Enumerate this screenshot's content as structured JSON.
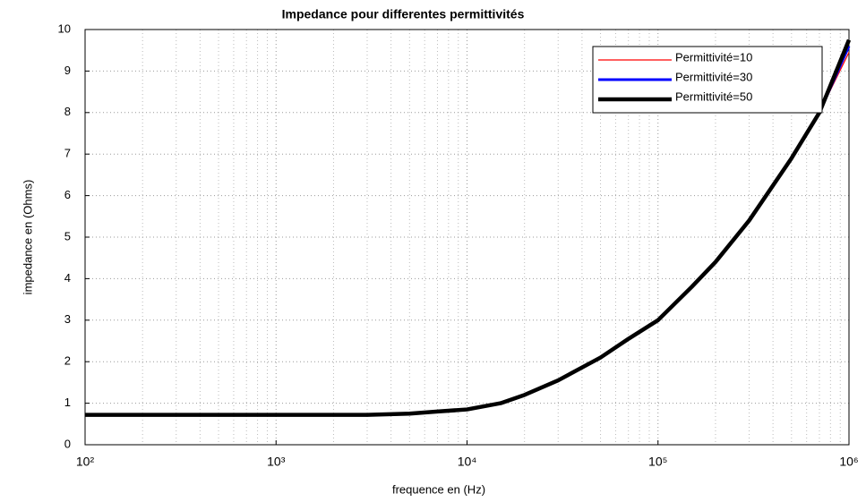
{
  "chart_data": {
    "type": "line",
    "title": "Impedance pour differentes permittivités",
    "xlabel": "frequence en (Hz)",
    "ylabel": "impedance en (Ohms)",
    "xscale": "log",
    "xlim": [
      100,
      1000000
    ],
    "xticks": [
      {
        "value": 100,
        "label": "10²"
      },
      {
        "value": 1000,
        "label": "10³"
      },
      {
        "value": 10000,
        "label": "10⁴"
      },
      {
        "value": 100000,
        "label": "10⁵"
      },
      {
        "value": 1000000,
        "label": "10⁶"
      }
    ],
    "ylim": [
      0,
      10
    ],
    "yticks": [
      0,
      1,
      2,
      3,
      4,
      5,
      6,
      7,
      8,
      9,
      10
    ],
    "grid": true,
    "legend": "upper right",
    "x": [
      100,
      200,
      500,
      1000,
      2000,
      3000,
      5000,
      7000,
      10000,
      15000,
      20000,
      30000,
      50000,
      70000,
      100000,
      150000,
      200000,
      300000,
      500000,
      700000,
      1000000
    ],
    "series": [
      {
        "name": "Permittivité=10",
        "color": "#ff0000",
        "width": 1.2,
        "values": [
          0.72,
          0.72,
          0.72,
          0.72,
          0.72,
          0.72,
          0.75,
          0.8,
          0.85,
          1.0,
          1.2,
          1.55,
          2.1,
          2.55,
          3.0,
          3.8,
          4.4,
          5.4,
          6.9,
          8.0,
          9.45
        ]
      },
      {
        "name": "Permittivité=30",
        "color": "#0000ff",
        "width": 3,
        "values": [
          0.72,
          0.72,
          0.72,
          0.72,
          0.72,
          0.72,
          0.75,
          0.8,
          0.85,
          1.0,
          1.2,
          1.55,
          2.1,
          2.55,
          3.0,
          3.8,
          4.4,
          5.4,
          6.9,
          8.0,
          9.6
        ]
      },
      {
        "name": "Permittivité=50",
        "color": "#000000",
        "width": 4.5,
        "values": [
          0.72,
          0.72,
          0.72,
          0.72,
          0.72,
          0.72,
          0.75,
          0.8,
          0.85,
          1.0,
          1.2,
          1.55,
          2.1,
          2.55,
          3.0,
          3.8,
          4.4,
          5.4,
          6.9,
          8.0,
          9.75
        ]
      }
    ]
  }
}
